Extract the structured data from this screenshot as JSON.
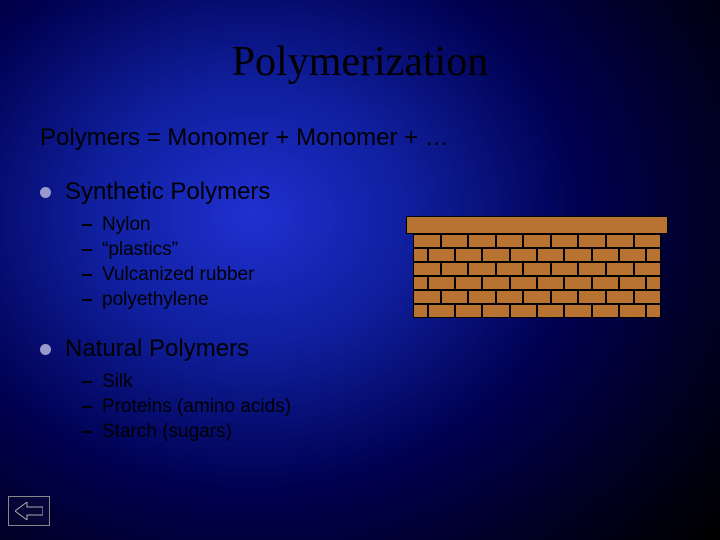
{
  "title": "Polymerization",
  "equation": "Polymers  =  Monomer + Monomer + …",
  "sections": [
    {
      "heading": "Synthetic Polymers",
      "items": [
        "Nylon",
        "“plastics”",
        "Vulcanized rubber",
        "polyethylene"
      ]
    },
    {
      "heading": "Natural Polymers",
      "items": [
        "Silk",
        "Proteins (amino acids)",
        "Starch (sugars)"
      ]
    }
  ],
  "brick": {
    "color": "#b87333",
    "border_color": "#000000",
    "rows": 6,
    "bricks_per_row": 9
  },
  "colors": {
    "bullet": "#9999cc",
    "title": "#000000",
    "text": "#000000"
  },
  "back_icon": "back-arrow"
}
